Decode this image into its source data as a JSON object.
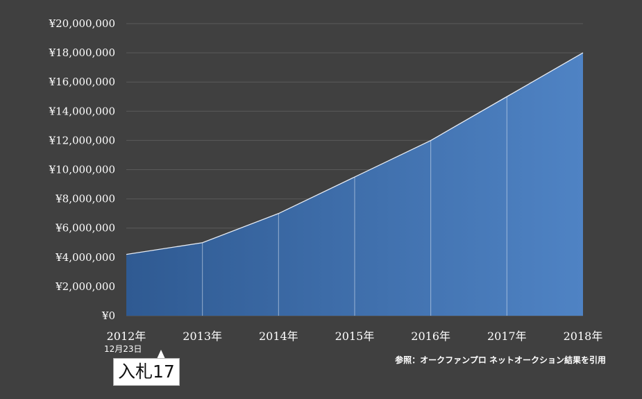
{
  "chart_data": {
    "type": "area",
    "categories": [
      "2012年",
      "2013年",
      "2014年",
      "2015年",
      "2016年",
      "2017年",
      "2018年"
    ],
    "values": [
      4200000,
      5000000,
      7000000,
      9500000,
      12000000,
      15000000,
      18000000
    ],
    "ylim": [
      0,
      20000000
    ],
    "yticks": [
      "¥0",
      "¥2,000,000",
      "¥4,000,000",
      "¥6,000,000",
      "¥8,000,000",
      "¥10,000,000",
      "¥12,000,000",
      "¥14,000,000",
      "¥16,000,000",
      "¥18,000,000",
      "¥20,000,000"
    ],
    "grid": true,
    "colors": {
      "fill_start": "#2f5a92",
      "fill_end": "#4f83c4",
      "line": "#e6ecf5",
      "background": "#404040"
    }
  },
  "annotations": {
    "date": "12月23日",
    "callout": "入札17",
    "source_note": "参照：オークファンプロ ネットオークション結果を引用"
  }
}
